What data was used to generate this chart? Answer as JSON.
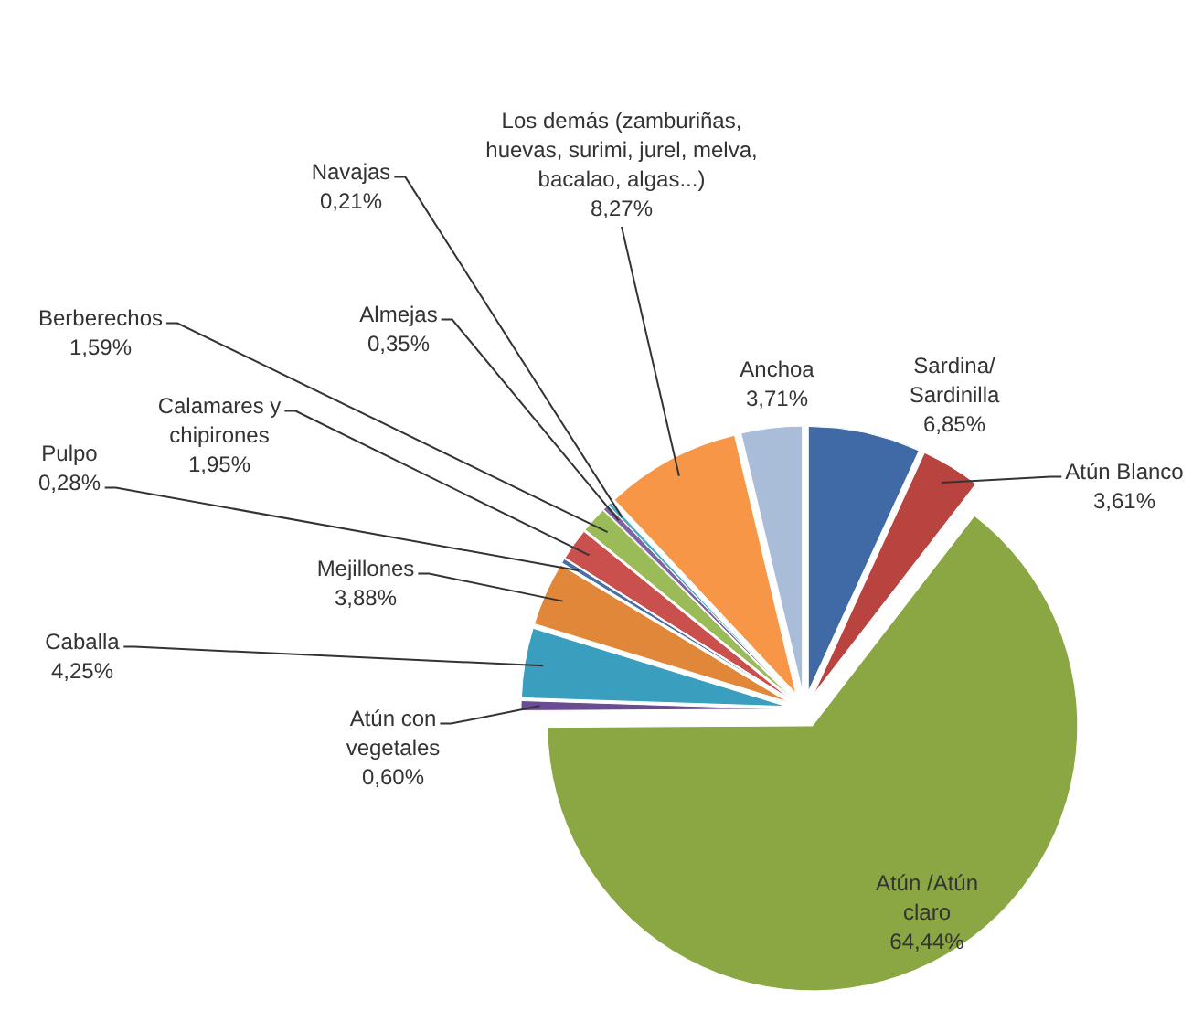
{
  "chart_data": {
    "type": "pie",
    "categories": [
      "Sardina/ Sardinilla",
      "Atún Blanco",
      "Atún /Atún claro",
      "Atún con vegetales",
      "Caballa",
      "Mejillones",
      "Pulpo",
      "Calamares y chipirones",
      "Berberechos",
      "Almejas",
      "Navajas",
      "Los demás (zamburiñas, huevas, surimi, jurel, melva, bacalao, algas...)",
      "Anchoa"
    ],
    "values": [
      6.85,
      3.61,
      64.44,
      0.6,
      4.25,
      3.88,
      0.28,
      1.95,
      1.59,
      0.35,
      0.21,
      8.27,
      3.71
    ],
    "colors": [
      "#3f6aa6",
      "#b8433f",
      "#8aa743",
      "#6a4c93",
      "#3a9fbf",
      "#e0873a",
      "#4a6fa8",
      "#c9504c",
      "#9bbb59",
      "#8064a2",
      "#4bacc6",
      "#f79646",
      "#a9bdd8"
    ],
    "value_labels": [
      "6,85%",
      "3,61%",
      "64,44%",
      "0,60%",
      "4,25%",
      "3,88%",
      "0,28%",
      "1,95%",
      "1,59%",
      "0,35%",
      "0,21%",
      "8,27%",
      "3,71%"
    ]
  }
}
